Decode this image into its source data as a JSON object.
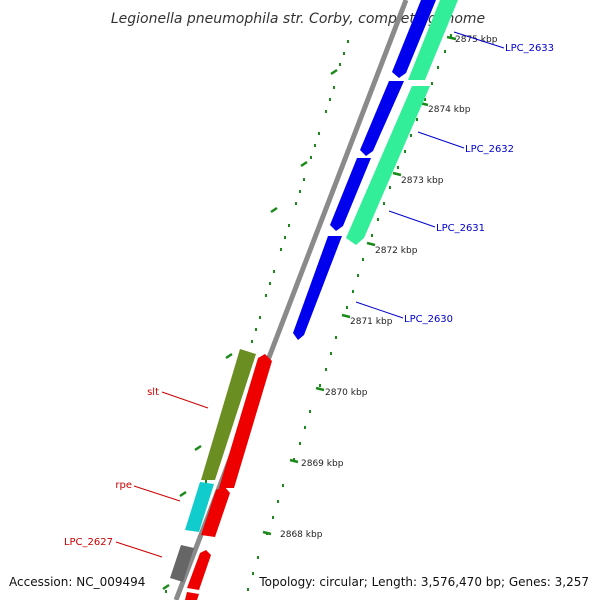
{
  "title": "Legionella pneumophila str. Corby, complete genome",
  "footer": {
    "accession": "Accession: NC_009494",
    "topology": "Topology: circular; Length: 3,576,470 bp; Genes: 3,257"
  },
  "ticks": [
    "2875 kbp",
    "2874 kbp",
    "2873 kbp",
    "2872 kbp",
    "2871 kbp",
    "2870 kbp",
    "2869 kbp",
    "2868 kbp"
  ],
  "labels": {
    "right": [
      "LPC_2633",
      "LPC_2632",
      "LPC_2631",
      "LPC_2630"
    ],
    "left": [
      "slt",
      "rpe",
      "LPC_2627"
    ]
  },
  "colors": {
    "right_label": "#0000cc",
    "left_label": "#cc0000",
    "backbone": "#8a8a8a",
    "tick_mark": "#1a8a1a",
    "blue_gene": "#0000ee",
    "green_gene": "#33ee99",
    "red_gene": "#ee0000",
    "olive_gene": "#6b8e23",
    "cyan_gene": "#11cccc",
    "gray_gene": "#666666"
  }
}
